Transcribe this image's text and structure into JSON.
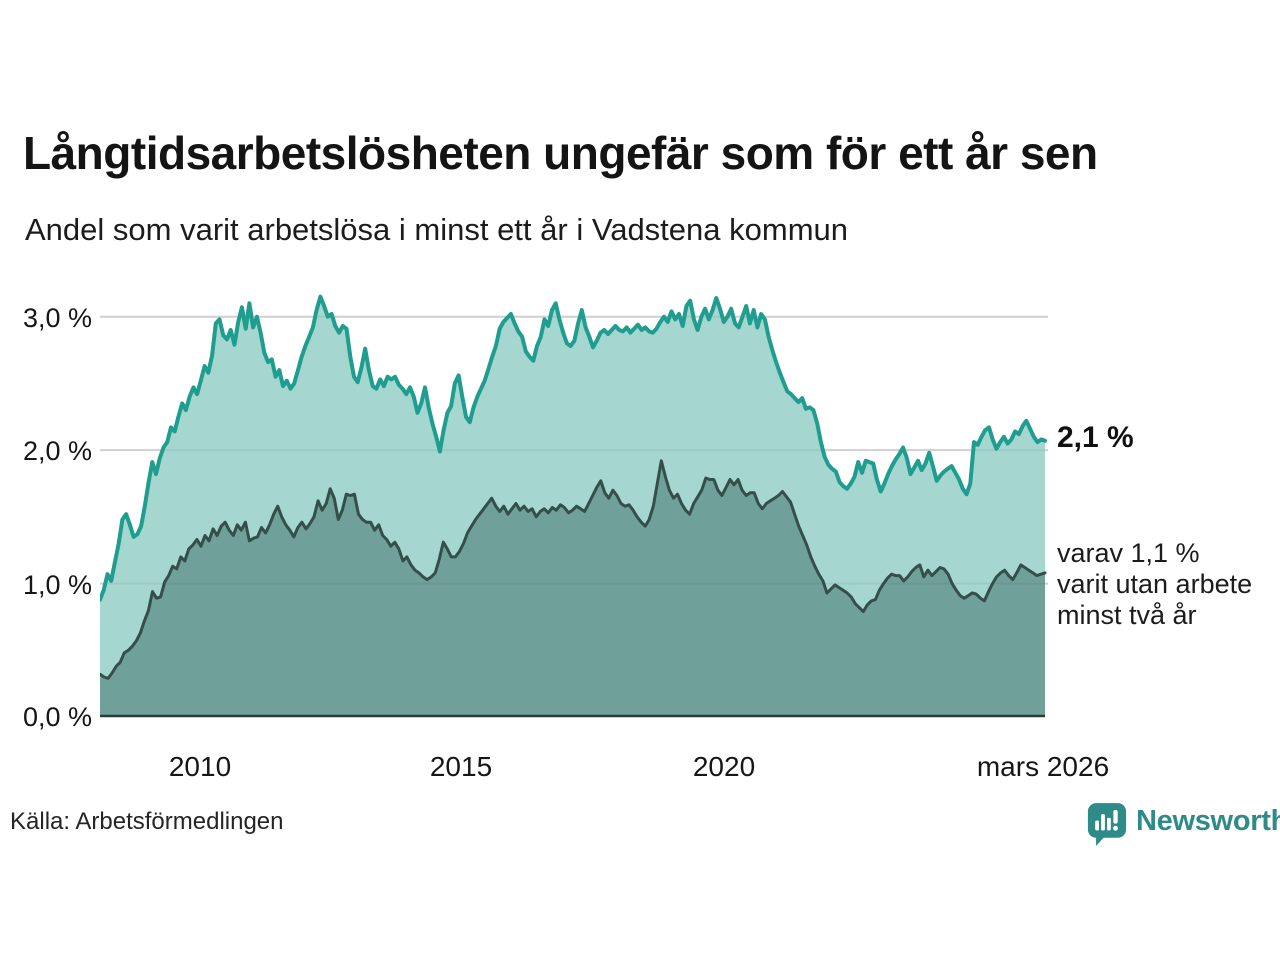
{
  "header": {
    "title": "Långtidsarbetslösheten ungefär som för ett år sen",
    "subtitle": "Andel som varit arbetslösa i minst ett år i Vadstena kommun"
  },
  "annotations": {
    "end_value": "2,1 %",
    "sub_lines": [
      "varav 1,1 %",
      "varit utan arbete",
      "minst två år"
    ]
  },
  "footer": {
    "source": "Källa: Arbetsförmedlingen",
    "brand": "Newsworthy"
  },
  "colors": {
    "grid": "#dcdcdc",
    "baseline": "#2d3b38",
    "brand": "#2e8b88",
    "title_text": "#141414"
  },
  "chart_data": {
    "type": "area",
    "title": "Långtidsarbetslösheten ungefär som för ett år sen",
    "subtitle": "Andel som varit arbetslösa i minst ett år i Vadstena kommun",
    "xlabel": "",
    "ylabel": "",
    "grid": true,
    "legend_position": "right-annotations",
    "ylim": [
      0,
      3.2
    ],
    "x_range": {
      "start_year": 2008.08,
      "end_year": 2026.17
    },
    "y_ticks": [
      {
        "label": "3,0 %",
        "value": 3.0
      },
      {
        "label": "2,0 %",
        "value": 2.0
      },
      {
        "label": "1,0 %",
        "value": 1.0
      },
      {
        "label": "0,0 %",
        "value": 0.0
      }
    ],
    "x_ticks": [
      {
        "label": "2010",
        "year": 2010
      },
      {
        "label": "2015",
        "year": 2015
      },
      {
        "label": "2020",
        "year": 2020
      },
      {
        "label": "mars 2026",
        "year": 2026.17
      }
    ],
    "series": [
      {
        "name": "Arbetslösa minst ett år",
        "unit": "%",
        "end_value": 2.1,
        "line_color": "#1f9d8f",
        "fill_color": "#a5d6cf",
        "stroke_width": 4,
        "values": [
          0.88,
          0.95,
          1.07,
          1.02,
          1.16,
          1.3,
          1.48,
          1.52,
          1.44,
          1.35,
          1.37,
          1.43,
          1.58,
          1.76,
          1.91,
          1.82,
          1.94,
          2.02,
          2.06,
          2.17,
          2.14,
          2.25,
          2.35,
          2.3,
          2.4,
          2.47,
          2.42,
          2.52,
          2.63,
          2.58,
          2.71,
          2.95,
          2.98,
          2.86,
          2.83,
          2.9,
          2.79,
          2.96,
          3.07,
          2.91,
          3.1,
          2.92,
          3.0,
          2.88,
          2.73,
          2.66,
          2.68,
          2.55,
          2.6,
          2.48,
          2.52,
          2.46,
          2.5,
          2.6,
          2.7,
          2.78,
          2.85,
          2.92,
          3.05,
          3.15,
          3.08,
          3.0,
          3.02,
          2.93,
          2.88,
          2.93,
          2.91,
          2.7,
          2.55,
          2.51,
          2.62,
          2.76,
          2.6,
          2.48,
          2.46,
          2.53,
          2.48,
          2.55,
          2.53,
          2.55,
          2.49,
          2.46,
          2.42,
          2.47,
          2.4,
          2.28,
          2.35,
          2.47,
          2.32,
          2.2,
          2.1,
          1.99,
          2.15,
          2.28,
          2.33,
          2.5,
          2.56,
          2.4,
          2.25,
          2.21,
          2.32,
          2.4,
          2.46,
          2.52,
          2.61,
          2.7,
          2.78,
          2.91,
          2.96,
          2.99,
          3.02,
          2.95,
          2.89,
          2.85,
          2.74,
          2.7,
          2.67,
          2.78,
          2.85,
          2.98,
          2.93,
          3.05,
          3.1,
          2.98,
          2.88,
          2.8,
          2.78,
          2.82,
          2.95,
          3.05,
          2.92,
          2.85,
          2.77,
          2.82,
          2.88,
          2.9,
          2.87,
          2.9,
          2.93,
          2.9,
          2.89,
          2.92,
          2.88,
          2.91,
          2.94,
          2.9,
          2.92,
          2.89,
          2.88,
          2.91,
          2.96,
          3.0,
          2.96,
          3.04,
          2.98,
          3.02,
          2.93,
          3.08,
          3.12,
          2.98,
          2.9,
          3.0,
          3.06,
          2.98,
          3.05,
          3.14,
          3.06,
          2.96,
          3.0,
          3.06,
          2.95,
          2.92,
          3.0,
          3.08,
          2.95,
          3.05,
          2.92,
          3.02,
          2.98,
          2.85,
          2.75,
          2.66,
          2.58,
          2.51,
          2.44,
          2.42,
          2.39,
          2.36,
          2.39,
          2.31,
          2.32,
          2.3,
          2.2,
          2.06,
          1.95,
          1.89,
          1.86,
          1.84,
          1.76,
          1.73,
          1.71,
          1.75,
          1.8,
          1.91,
          1.83,
          1.92,
          1.91,
          1.9,
          1.78,
          1.69,
          1.75,
          1.82,
          1.88,
          1.93,
          1.97,
          2.02,
          1.94,
          1.82,
          1.87,
          1.92,
          1.85,
          1.9,
          1.98,
          1.88,
          1.77,
          1.81,
          1.84,
          1.86,
          1.88,
          1.83,
          1.78,
          1.71,
          1.67,
          1.75,
          2.06,
          2.04,
          2.1,
          2.15,
          2.17,
          2.08,
          2.01,
          2.06,
          2.1,
          2.05,
          2.08,
          2.14,
          2.12,
          2.18,
          2.22,
          2.16,
          2.1,
          2.06,
          2.08,
          2.07
        ]
      },
      {
        "name": "varav utan arbete minst två år",
        "unit": "%",
        "end_value": 1.1,
        "line_color": "#344f4a",
        "fill_color": "#70a09a",
        "stroke_width": 3,
        "values": [
          0.32,
          0.3,
          0.29,
          0.33,
          0.38,
          0.41,
          0.48,
          0.5,
          0.53,
          0.57,
          0.63,
          0.72,
          0.8,
          0.94,
          0.89,
          0.9,
          1.01,
          1.06,
          1.13,
          1.11,
          1.2,
          1.17,
          1.26,
          1.29,
          1.33,
          1.28,
          1.36,
          1.32,
          1.41,
          1.36,
          1.43,
          1.46,
          1.4,
          1.36,
          1.44,
          1.4,
          1.46,
          1.32,
          1.34,
          1.35,
          1.42,
          1.38,
          1.44,
          1.52,
          1.58,
          1.5,
          1.44,
          1.4,
          1.35,
          1.42,
          1.46,
          1.41,
          1.45,
          1.5,
          1.62,
          1.55,
          1.6,
          1.71,
          1.64,
          1.48,
          1.55,
          1.67,
          1.66,
          1.67,
          1.52,
          1.48,
          1.46,
          1.46,
          1.4,
          1.44,
          1.36,
          1.33,
          1.28,
          1.31,
          1.26,
          1.17,
          1.2,
          1.14,
          1.1,
          1.08,
          1.05,
          1.03,
          1.05,
          1.08,
          1.18,
          1.31,
          1.26,
          1.2,
          1.2,
          1.24,
          1.3,
          1.38,
          1.43,
          1.48,
          1.52,
          1.56,
          1.6,
          1.64,
          1.58,
          1.54,
          1.58,
          1.52,
          1.56,
          1.6,
          1.55,
          1.58,
          1.54,
          1.56,
          1.5,
          1.54,
          1.56,
          1.53,
          1.57,
          1.55,
          1.59,
          1.57,
          1.53,
          1.55,
          1.58,
          1.56,
          1.54,
          1.6,
          1.66,
          1.72,
          1.77,
          1.68,
          1.64,
          1.7,
          1.66,
          1.6,
          1.58,
          1.59,
          1.55,
          1.5,
          1.46,
          1.43,
          1.48,
          1.58,
          1.75,
          1.92,
          1.8,
          1.7,
          1.64,
          1.67,
          1.6,
          1.55,
          1.52,
          1.6,
          1.65,
          1.7,
          1.79,
          1.78,
          1.78,
          1.7,
          1.66,
          1.72,
          1.78,
          1.74,
          1.78,
          1.7,
          1.66,
          1.68,
          1.68,
          1.6,
          1.56,
          1.6,
          1.62,
          1.64,
          1.66,
          1.69,
          1.65,
          1.61,
          1.52,
          1.43,
          1.36,
          1.29,
          1.2,
          1.13,
          1.07,
          1.02,
          0.93,
          0.96,
          0.99,
          0.97,
          0.95,
          0.93,
          0.9,
          0.85,
          0.82,
          0.79,
          0.84,
          0.87,
          0.88,
          0.95,
          1.0,
          1.04,
          1.07,
          1.06,
          1.06,
          1.02,
          1.05,
          1.09,
          1.12,
          1.14,
          1.05,
          1.1,
          1.06,
          1.09,
          1.12,
          1.11,
          1.07,
          1.0,
          0.95,
          0.91,
          0.89,
          0.91,
          0.93,
          0.92,
          0.89,
          0.87,
          0.94,
          1.0,
          1.05,
          1.08,
          1.1,
          1.06,
          1.03,
          1.08,
          1.14,
          1.12,
          1.1,
          1.08,
          1.06,
          1.07,
          1.08
        ]
      }
    ]
  }
}
